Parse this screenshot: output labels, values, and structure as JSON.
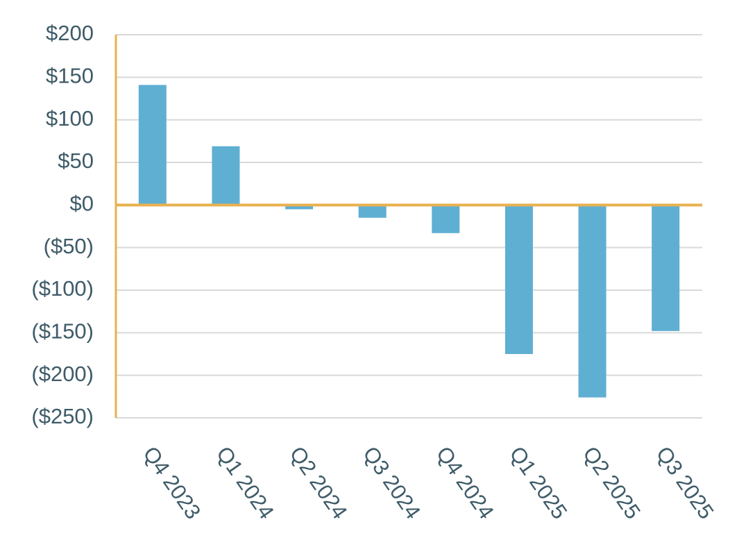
{
  "chart_data": {
    "type": "bar",
    "categories": [
      "Q4 2023",
      "Q1 2024",
      "Q2 2024",
      "Q3 2024",
      "Q4 2024",
      "Q1 2025",
      "Q2 2025",
      "Q3 2025"
    ],
    "values": [
      141,
      69,
      -5,
      -15,
      -33,
      -175,
      -226,
      -148
    ],
    "color": "#5fafd3",
    "axis_color": "#e8b14f",
    "ylim": [
      -250,
      200
    ],
    "yticks": [
      {
        "value": 200,
        "label": "$200"
      },
      {
        "value": 150,
        "label": "$150"
      },
      {
        "value": 100,
        "label": "$100"
      },
      {
        "value": 50,
        "label": "$50"
      },
      {
        "value": 0,
        "label": "$0"
      },
      {
        "value": -50,
        "label": "($50)"
      },
      {
        "value": -100,
        "label": "($100)"
      },
      {
        "value": -150,
        "label": "($150)"
      },
      {
        "value": -200,
        "label": "($200)"
      },
      {
        "value": -250,
        "label": "($250)"
      }
    ],
    "grid": true
  }
}
